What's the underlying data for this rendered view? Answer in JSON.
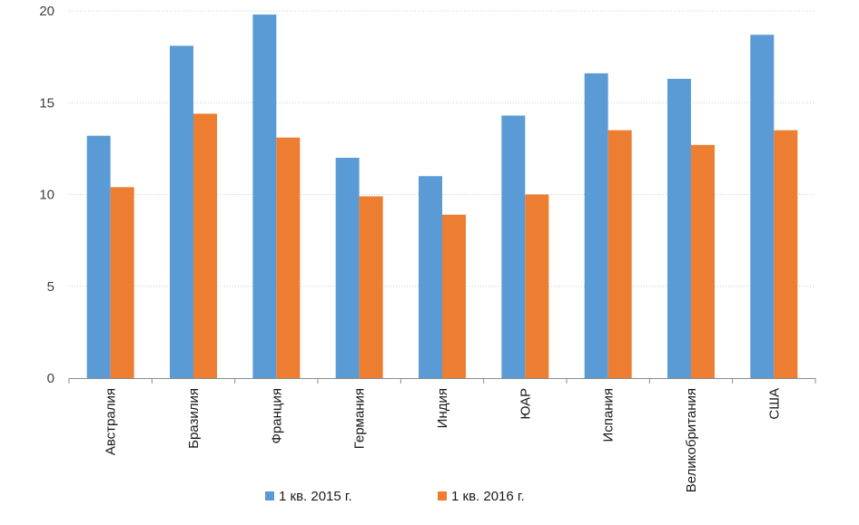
{
  "chart_data": {
    "type": "bar",
    "categories": [
      "Австралия",
      "Бразилия",
      "Франция",
      "Германия",
      "Индия",
      "ЮАР",
      "Испания",
      "Великобритания",
      "США"
    ],
    "series": [
      {
        "name": "1 кв. 2015 г.",
        "color": "#5B9BD5",
        "values": [
          13.2,
          18.1,
          19.8,
          12.0,
          11.0,
          14.3,
          16.6,
          16.3,
          18.7
        ]
      },
      {
        "name": "1 кв. 2016 г.",
        "color": "#ED7D31",
        "values": [
          10.4,
          14.4,
          13.1,
          9.9,
          8.9,
          10.0,
          13.5,
          12.7,
          13.5
        ]
      }
    ],
    "title": "",
    "xlabel": "",
    "ylabel": "",
    "ylim": [
      0,
      20
    ],
    "yticks": [
      0,
      5,
      10,
      15,
      20
    ],
    "grid": true,
    "legend_position": "bottom"
  }
}
